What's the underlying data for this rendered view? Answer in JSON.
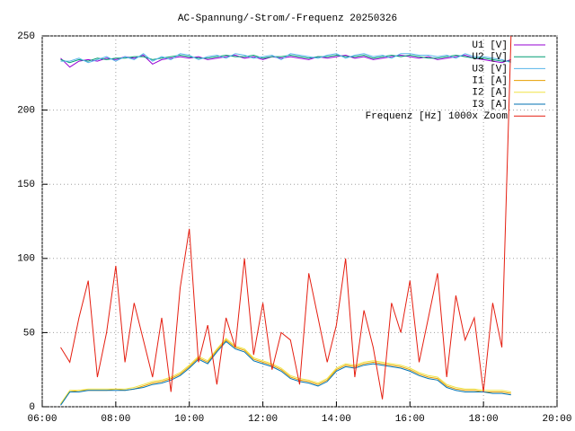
{
  "chart_data": {
    "type": "line",
    "title": "AC-Spannung/-Strom/-Frequenz 20250326",
    "x": [
      6.5,
      6.75,
      7,
      7.25,
      7.5,
      7.75,
      8,
      8.25,
      8.5,
      8.75,
      9,
      9.25,
      9.5,
      9.75,
      10,
      10.25,
      10.5,
      10.75,
      11,
      11.25,
      11.5,
      11.75,
      12,
      12.25,
      12.5,
      12.75,
      13,
      13.25,
      13.5,
      13.75,
      14,
      14.25,
      14.5,
      14.75,
      15,
      15.25,
      15.5,
      15.75,
      16,
      16.25,
      16.5,
      16.75,
      17,
      17.25,
      17.5,
      17.75,
      18,
      18.25,
      18.5,
      18.75
    ],
    "xlim": [
      6,
      20
    ],
    "xticks": [
      {
        "value": 6,
        "label": "06:00"
      },
      {
        "value": 8,
        "label": "08:00"
      },
      {
        "value": 10,
        "label": "10:00"
      },
      {
        "value": 12,
        "label": "12:00"
      },
      {
        "value": 14,
        "label": "14:00"
      },
      {
        "value": 16,
        "label": "16:00"
      },
      {
        "value": 18,
        "label": "18:00"
      },
      {
        "value": 20,
        "label": "20:00"
      }
    ],
    "ylim": [
      0,
      250
    ],
    "yticks": [
      0,
      50,
      100,
      150,
      200,
      250
    ],
    "grid": true,
    "legend": "top-right",
    "series": [
      {
        "name": "U1 [V]",
        "color": "#9400d3",
        "values": [
          235,
          229,
          233,
          234,
          233,
          235,
          234,
          236,
          235,
          237,
          231,
          234,
          235,
          236,
          235,
          236,
          234,
          235,
          236,
          237,
          235,
          236,
          234,
          236,
          235,
          236,
          235,
          234,
          236,
          235,
          236,
          237,
          235,
          236,
          234,
          235,
          236,
          237,
          236,
          235,
          236,
          234,
          235,
          236,
          237,
          235,
          234,
          233,
          232,
          234
        ]
      },
      {
        "name": "U2 [V]",
        "color": "#009e73",
        "values": [
          234,
          232,
          234,
          233,
          235,
          234,
          235,
          235,
          236,
          236,
          234,
          235,
          236,
          237,
          236,
          235,
          235,
          236,
          237,
          236,
          236,
          237,
          235,
          236,
          236,
          237,
          236,
          235,
          236,
          236,
          237,
          236,
          236,
          237,
          235,
          236,
          237,
          236,
          237,
          236,
          235,
          235,
          236,
          237,
          236,
          235,
          235,
          234,
          233,
          233
        ]
      },
      {
        "name": "U3 [V]",
        "color": "#56b4e9",
        "values": [
          233,
          233,
          235,
          232,
          234,
          236,
          233,
          236,
          234,
          238,
          233,
          236,
          234,
          238,
          237,
          234,
          236,
          237,
          235,
          238,
          237,
          235,
          236,
          237,
          234,
          238,
          237,
          236,
          235,
          237,
          238,
          235,
          237,
          238,
          236,
          237,
          235,
          238,
          238,
          237,
          237,
          236,
          237,
          235,
          238,
          236,
          236,
          235,
          234,
          232
        ]
      },
      {
        "name": "I1 [A]",
        "color": "#e69f00",
        "values": [
          2,
          10,
          11,
          11,
          11,
          11,
          12,
          11,
          12,
          14,
          16,
          17,
          19,
          22,
          27,
          33,
          30,
          38,
          45,
          40,
          38,
          32,
          30,
          28,
          25,
          20,
          18,
          17,
          15,
          18,
          25,
          28,
          27,
          29,
          30,
          29,
          28,
          27,
          25,
          22,
          20,
          19,
          14,
          12,
          11,
          11,
          10,
          10,
          10,
          9
        ]
      },
      {
        "name": "I2 [A]",
        "color": "#f0e442",
        "values": [
          2,
          11,
          11,
          12,
          12,
          12,
          12,
          12,
          13,
          15,
          17,
          18,
          20,
          23,
          28,
          34,
          31,
          39,
          46,
          41,
          39,
          33,
          31,
          29,
          26,
          21,
          19,
          18,
          16,
          19,
          26,
          29,
          28,
          30,
          31,
          30,
          29,
          28,
          26,
          23,
          21,
          20,
          15,
          13,
          12,
          12,
          11,
          11,
          11,
          10
        ]
      },
      {
        "name": "I3 [A]",
        "color": "#0072b2",
        "values": [
          1,
          10,
          10,
          11,
          11,
          11,
          11,
          11,
          12,
          13,
          15,
          16,
          18,
          21,
          26,
          32,
          29,
          37,
          44,
          39,
          37,
          31,
          29,
          27,
          24,
          19,
          17,
          16,
          14,
          17,
          24,
          27,
          26,
          28,
          29,
          28,
          27,
          26,
          24,
          21,
          19,
          18,
          13,
          11,
          10,
          10,
          10,
          9,
          9,
          8
        ]
      },
      {
        "name": "Frequenz [Hz] 1000x Zoom",
        "color": "#e51e10",
        "values": [
          40,
          30,
          60,
          85,
          20,
          50,
          95,
          30,
          70,
          45,
          20,
          60,
          10,
          80,
          120,
          30,
          55,
          15,
          60,
          40,
          100,
          35,
          70,
          25,
          50,
          45,
          15,
          90,
          60,
          30,
          55,
          100,
          20,
          65,
          40,
          5,
          70,
          50,
          85,
          30,
          60,
          90,
          20,
          75,
          45,
          60,
          10,
          70,
          40,
          250
        ]
      }
    ]
  }
}
